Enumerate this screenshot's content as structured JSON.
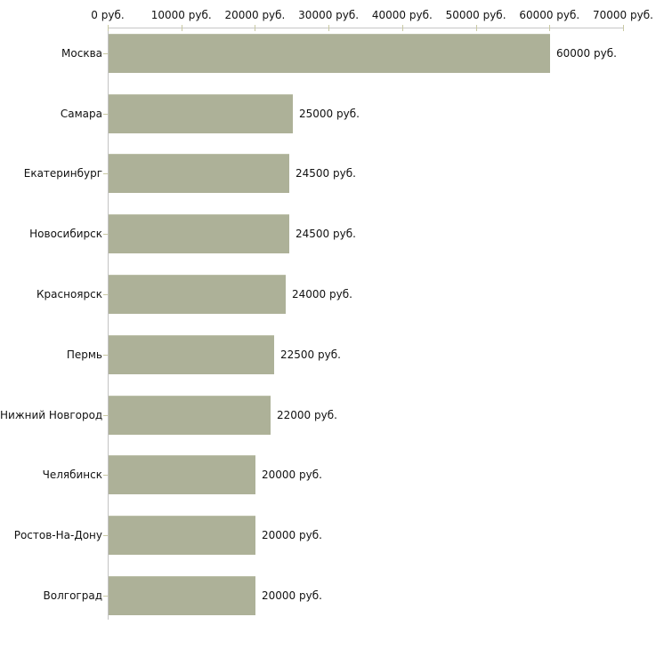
{
  "chart_data": {
    "type": "bar",
    "orientation": "horizontal",
    "title": "",
    "xlabel": "",
    "ylabel": "",
    "unit": "руб.",
    "xlim": [
      0,
      70000
    ],
    "grid": false,
    "legend": null,
    "categories": [
      "Москва",
      "Самара",
      "Екатеринбург",
      "Новосибирск",
      "Красноярск",
      "Пермь",
      "Нижний Новгород",
      "Челябинск",
      "Ростов-На-Дону",
      "Волгоград"
    ],
    "values": [
      60000,
      25000,
      24500,
      24500,
      24000,
      22500,
      22000,
      20000,
      20000,
      20000
    ],
    "value_labels": [
      "60000 руб.",
      "25000 руб.",
      "24500 руб.",
      "24500 руб.",
      "24000 руб.",
      "22500 руб.",
      "22000 руб.",
      "20000 руб.",
      "20000 руб.",
      "20000 руб."
    ],
    "x_tick_labels": [
      "0 руб.",
      "10000 руб.",
      "20000 руб.",
      "30000 руб.",
      "40000 руб.",
      "50000 руб.",
      "60000 руб.",
      "70000 руб."
    ],
    "colors": {
      "bar": "#adb198",
      "axis_line": "#c6c6c6",
      "tick": "#c9c9a3",
      "text": "#111111",
      "background": "#ffffff"
    }
  }
}
